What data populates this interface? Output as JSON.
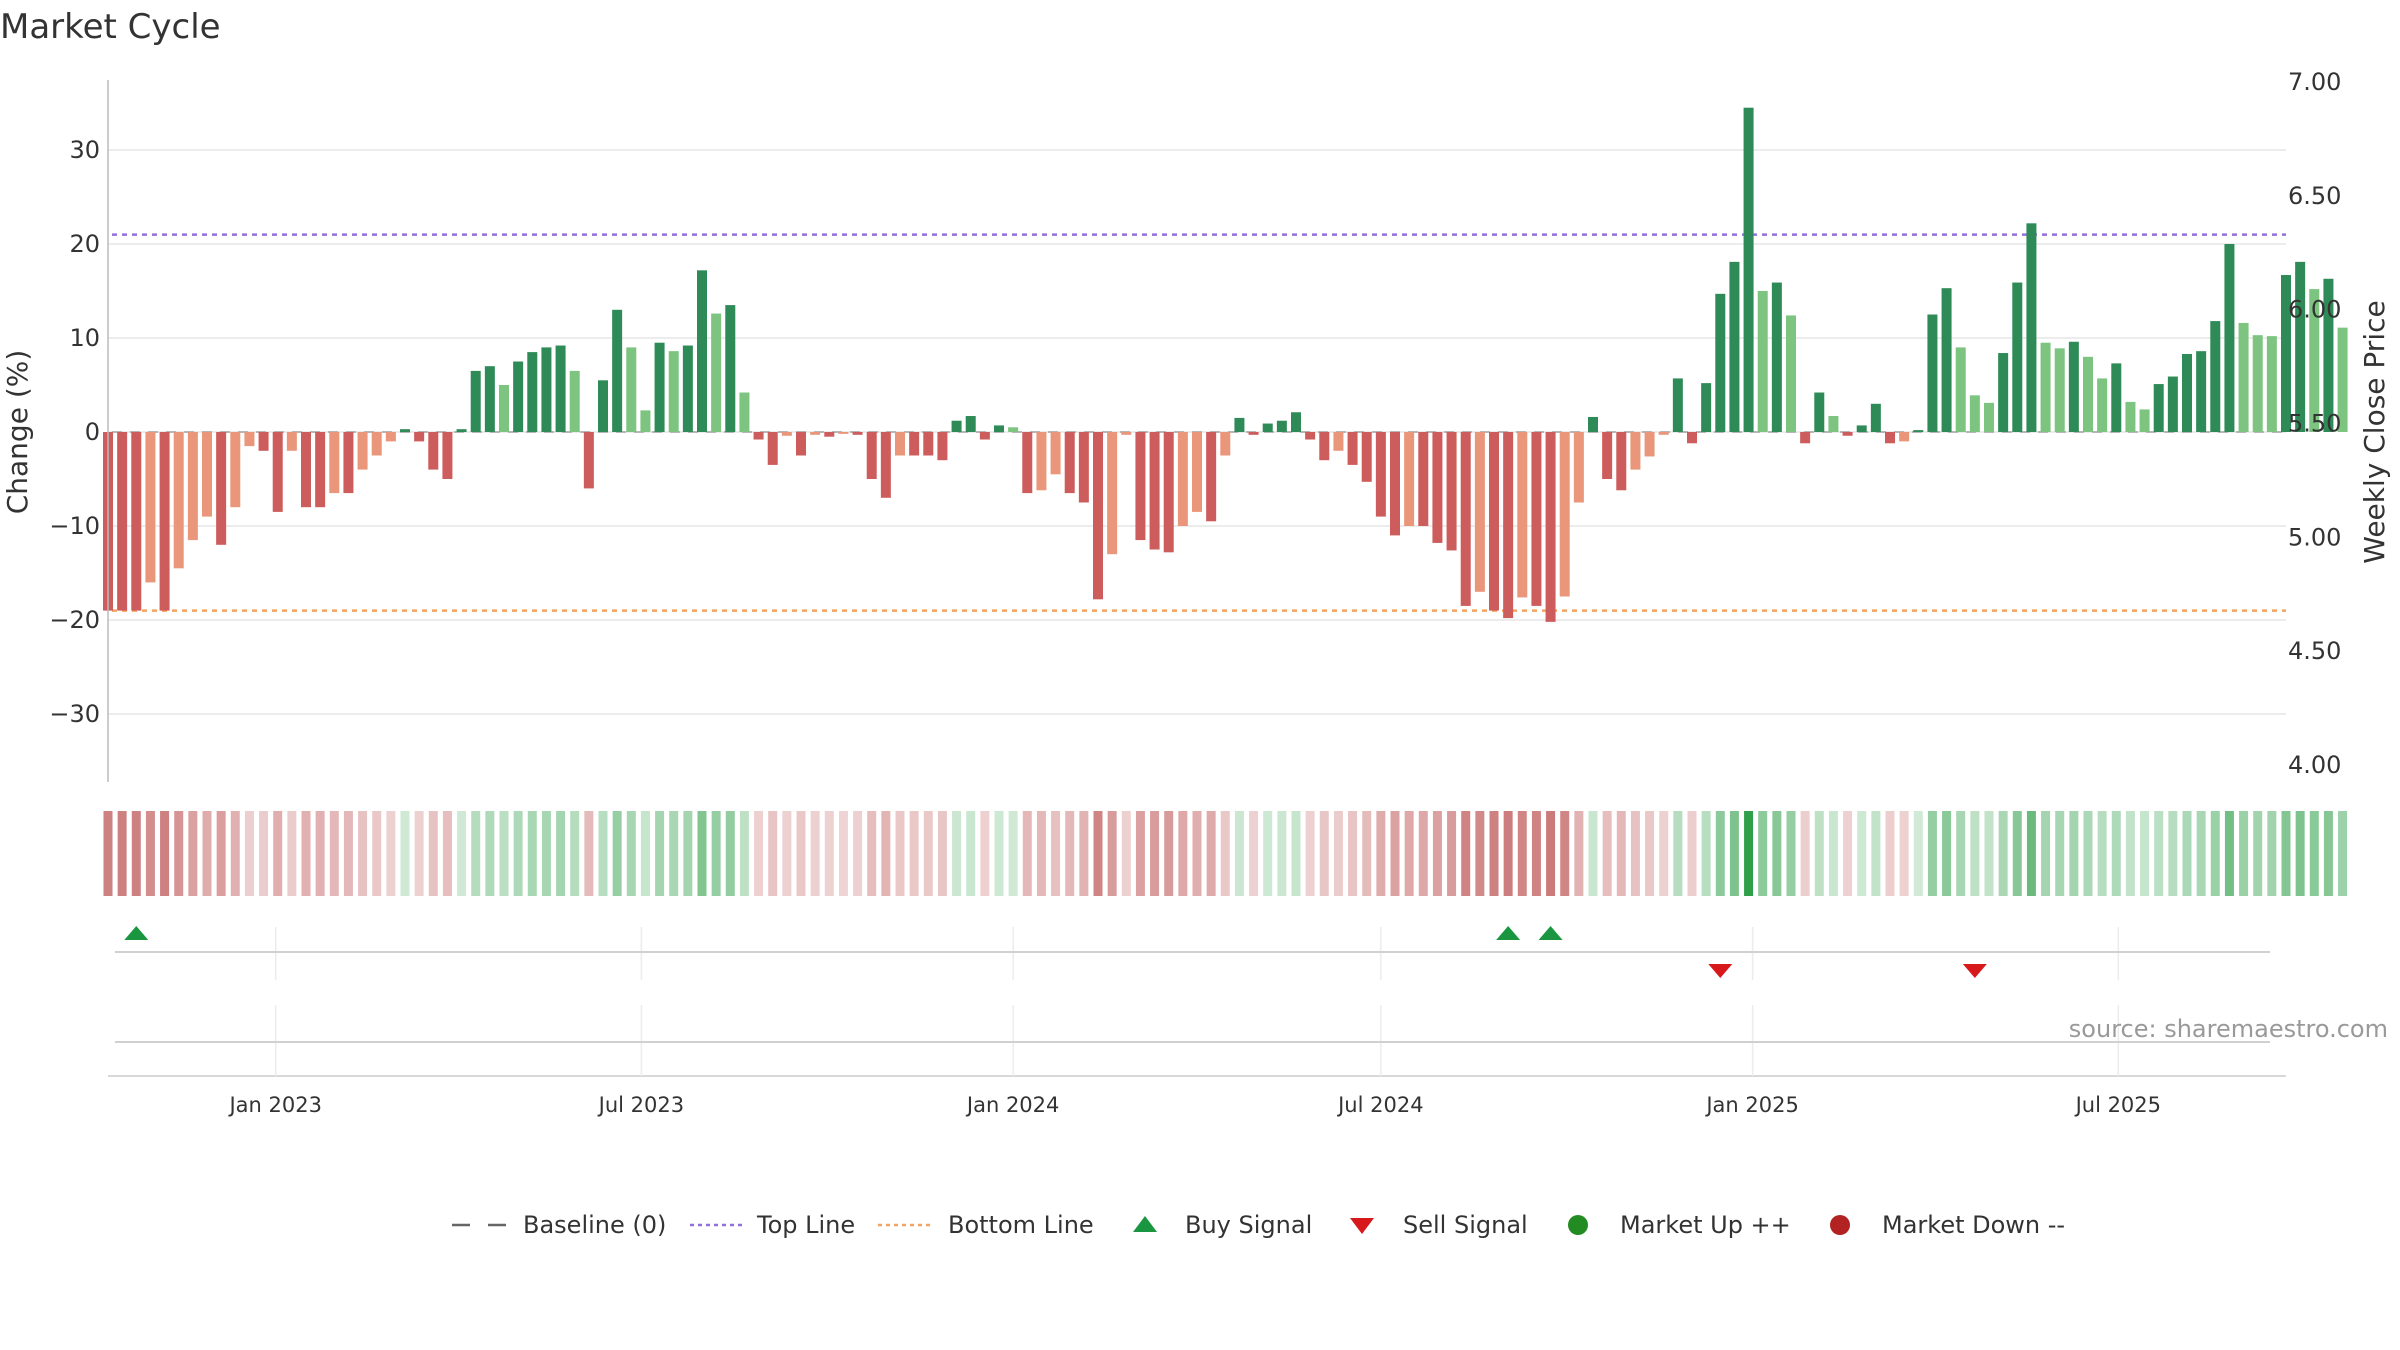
{
  "title": "Market Cycle",
  "source": "source: sharemaestro.com",
  "chart_data": {
    "type": "bar",
    "y_left": {
      "label": "Change (%)",
      "range": [
        -37,
        37
      ],
      "ticks": [
        30,
        20,
        10,
        0,
        -10,
        -20,
        -30
      ],
      "tick_labels": [
        "30",
        "20",
        "10",
        "0",
        "−10",
        "−20",
        "−30"
      ]
    },
    "y_right": {
      "label": "Weekly Close Price",
      "range": [
        4.0,
        7.0
      ],
      "ticks": [
        7.0,
        6.5,
        6.0,
        5.5,
        5.0,
        4.5,
        4.0
      ],
      "tick_labels": [
        "7.00",
        "6.50",
        "6.00",
        "5.50",
        "5.00",
        "4.50",
        "4.00"
      ]
    },
    "x_axis": {
      "start": "2022-10-10",
      "end": "2025-09-22",
      "ticks": [
        {
          "date": "2023-01-01",
          "label": "Jan 2023"
        },
        {
          "date": "2023-07-01",
          "label": "Jul 2023"
        },
        {
          "date": "2024-01-01",
          "label": "Jan 2024"
        },
        {
          "date": "2024-07-01",
          "label": "Jul 2024"
        },
        {
          "date": "2025-01-01",
          "label": "Jan 2025"
        },
        {
          "date": "2025-07-01",
          "label": "Jul 2025"
        }
      ]
    },
    "reference_lines": {
      "top_line": 21,
      "bottom_line": -19,
      "baseline": 0
    },
    "series": [
      {
        "name": "Change (%)",
        "start_date": "2022-10-10",
        "interval_days": 7,
        "values": [
          -19,
          -19,
          -19,
          -16,
          -19,
          -14.5,
          -11.5,
          -9,
          -12,
          -8,
          -1.5,
          -2,
          -8.5,
          -2,
          -8,
          -8,
          -6.5,
          -6.5,
          -4,
          -2.5,
          -1,
          0.3,
          -1,
          -4,
          -5,
          0.3,
          6.5,
          7,
          5,
          7.5,
          8.5,
          9,
          9.2,
          6.5,
          -6,
          5.5,
          13,
          9,
          2.3,
          9.5,
          8.6,
          9.2,
          17.2,
          12.6,
          13.5,
          4.2,
          -0.8,
          -3.5,
          -0.4,
          -2.5,
          -0.3,
          -0.5,
          -0.2,
          -0.3,
          -5,
          -7,
          -2.5,
          -2.5,
          -2.5,
          -3,
          1.2,
          1.7,
          -0.8,
          0.7,
          0.5,
          -6.5,
          -6.2,
          -4.5,
          -6.5,
          -7.5,
          -17.8,
          -13,
          -0.3,
          -11.5,
          -12.5,
          -12.8,
          -10,
          -8.5,
          -9.5,
          -2.5,
          1.5,
          -0.3,
          0.9,
          1.2,
          2.1,
          -0.8,
          -3,
          -2,
          -3.5,
          -5.3,
          -9,
          -11,
          -10,
          -10,
          -11.8,
          -12.6,
          -18.5,
          -17,
          -19,
          -19.8,
          -17.6,
          -18.5,
          -20.2,
          -17.5,
          -7.5,
          1.6,
          -5,
          -6.2,
          -4,
          -2.6,
          -0.3,
          5.7,
          -1.2,
          5.2,
          14.7,
          18.1,
          34.5,
          15,
          15.9,
          12.4,
          -1.2,
          4.2,
          1.7,
          -0.4,
          0.7,
          3,
          -1.2,
          -1,
          0.2,
          12.5,
          15.3,
          9,
          3.9,
          3.1,
          8.4,
          15.9,
          22.2,
          9.5,
          8.9,
          9.6,
          8,
          5.7,
          7.3,
          3.2,
          2.4,
          5.1,
          5.9,
          8.3,
          8.6,
          11.8,
          20,
          11.6,
          10.3,
          10.2,
          16.7,
          18.1,
          15.2,
          16.3,
          11.1
        ]
      }
    ],
    "signals": {
      "buy": [
        "2022-10-24",
        "2024-09-02",
        "2024-09-23"
      ],
      "sell": [
        "2024-12-16",
        "2025-04-21"
      ]
    },
    "legend": [
      "Baseline (0)",
      "Top Line",
      "Bottom Line",
      "Buy Signal",
      "Sell Signal",
      "Market Up ++",
      "Market Down --"
    ],
    "legend_position": "bottom",
    "grid": true,
    "colors": {
      "strong_up": "#2e8b57",
      "mild_up": "#7cc47f",
      "strong_down": "#cd5c5c",
      "mild_down": "#e9967a",
      "top_line": "#9370db",
      "bottom_line": "#f4a460",
      "buy": "#1a9641",
      "sell": "#d7191c",
      "market_up": "#228b22",
      "market_down": "#b22222",
      "baseline": "#666666"
    }
  }
}
